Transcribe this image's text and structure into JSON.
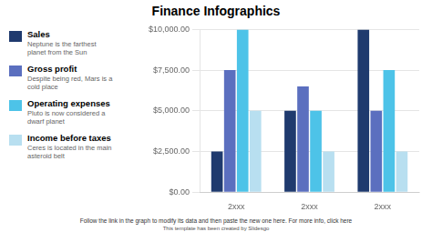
{
  "chart_data": {
    "type": "bar",
    "title": "Finance Infographics",
    "categories": [
      "2xxx",
      "2xxx",
      "2xxx"
    ],
    "series": [
      {
        "name": "Sales",
        "values": [
          2500,
          5000,
          10000
        ],
        "color": "#1f3a6e",
        "description": "Neptune is the farthest\nplanet from the Sun"
      },
      {
        "name": "Gross profit",
        "values": [
          7500,
          6500,
          5000
        ],
        "color": "#5b6fbf",
        "description": "Despite being red, Mars is a\ncold place"
      },
      {
        "name": "Operating expenses",
        "values": [
          10000,
          5000,
          7500
        ],
        "color": "#4dc3e8",
        "description": "Pluto is now considered a\ndwarf planet"
      },
      {
        "name": "Income before taxes",
        "values": [
          5000,
          2500,
          2500
        ],
        "color": "#b8dff0",
        "description": "Ceres is located in the main\nasteroid belt"
      }
    ],
    "ylim": [
      0,
      10000
    ],
    "yticks": [
      {
        "value": 0,
        "label": "$0.00"
      },
      {
        "value": 2500,
        "label": "$2,500.00"
      },
      {
        "value": 5000,
        "label": "$5,000.00"
      },
      {
        "value": 7500,
        "label": "$7,500.00"
      },
      {
        "value": 10000,
        "label": "$10,000.00"
      }
    ],
    "grid": true,
    "legend": "left",
    "annotations": [
      "Follow the link in the graph to modify its data and then paste the new one here. For more info, click here",
      "This template has been created by Slidesgo"
    ]
  }
}
